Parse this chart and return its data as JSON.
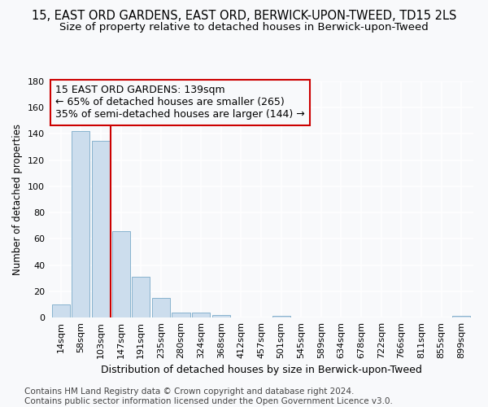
{
  "title": "15, EAST ORD GARDENS, EAST ORD, BERWICK-UPON-TWEED, TD15 2LS",
  "subtitle": "Size of property relative to detached houses in Berwick-upon-Tweed",
  "xlabel": "Distribution of detached houses by size in Berwick-upon-Tweed",
  "ylabel": "Number of detached properties",
  "footer_line1": "Contains HM Land Registry data © Crown copyright and database right 2024.",
  "footer_line2": "Contains public sector information licensed under the Open Government Licence v3.0.",
  "annotation_line1": "15 EAST ORD GARDENS: 139sqm",
  "annotation_line2": "← 65% of detached houses are smaller (265)",
  "annotation_line3": "35% of semi-detached houses are larger (144) →",
  "bar_labels": [
    "14sqm",
    "58sqm",
    "103sqm",
    "147sqm",
    "191sqm",
    "235sqm",
    "280sqm",
    "324sqm",
    "368sqm",
    "412sqm",
    "457sqm",
    "501sqm",
    "545sqm",
    "589sqm",
    "634sqm",
    "678sqm",
    "722sqm",
    "766sqm",
    "811sqm",
    "855sqm",
    "899sqm"
  ],
  "bar_values": [
    10,
    142,
    135,
    66,
    31,
    15,
    4,
    4,
    2,
    0,
    0,
    1,
    0,
    0,
    0,
    0,
    0,
    0,
    0,
    0,
    1
  ],
  "bar_color": "#ccdded",
  "bar_edge_color": "#7aaac8",
  "property_line_x": 2.5,
  "property_line_color": "#cc0000",
  "annotation_box_color": "#cc0000",
  "ylim": [
    0,
    180
  ],
  "yticks": [
    0,
    20,
    40,
    60,
    80,
    100,
    120,
    140,
    160,
    180
  ],
  "background_color": "#f8f9fb",
  "grid_color": "#ffffff",
  "title_fontsize": 10.5,
  "subtitle_fontsize": 9.5,
  "xlabel_fontsize": 9,
  "ylabel_fontsize": 8.5,
  "tick_fontsize": 8,
  "annotation_fontsize": 9,
  "footer_fontsize": 7.5
}
